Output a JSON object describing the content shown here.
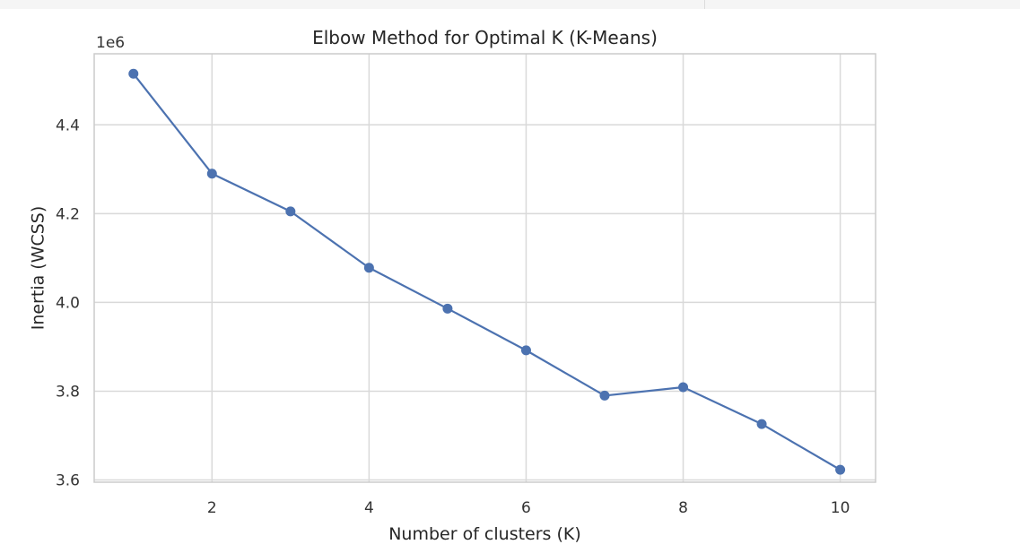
{
  "chart_data": {
    "type": "line",
    "title": "Elbow Method for Optimal K (K-Means)",
    "xlabel": "Number of clusters (K)",
    "ylabel": "Inertia (WCSS)",
    "y_offset_label": "1e6",
    "x": [
      1,
      2,
      3,
      4,
      5,
      6,
      7,
      8,
      9,
      10
    ],
    "series": [
      {
        "values": [
          4515000,
          4290000,
          4205000,
          4078000,
          3986000,
          3892000,
          3790000,
          3809000,
          3726000,
          3623000
        ],
        "color": "#4c72b0",
        "marker": "circle"
      }
    ],
    "xlim": [
      0.5,
      10.45
    ],
    "ylim": [
      3595000.0,
      4560000.0
    ],
    "xticks": [
      2,
      4,
      6,
      8,
      10
    ],
    "xtick_labels": [
      "2",
      "4",
      "6",
      "8",
      "10"
    ],
    "yticks": [
      3600000.0,
      3800000.0,
      4000000.0,
      4200000.0,
      4400000.0
    ],
    "ytick_labels": [
      "3.6",
      "3.8",
      "4.0",
      "4.2",
      "4.4"
    ],
    "grid": true,
    "style": {
      "grid_color": "#d9d9d9",
      "frame_color": "#cccccc"
    }
  }
}
